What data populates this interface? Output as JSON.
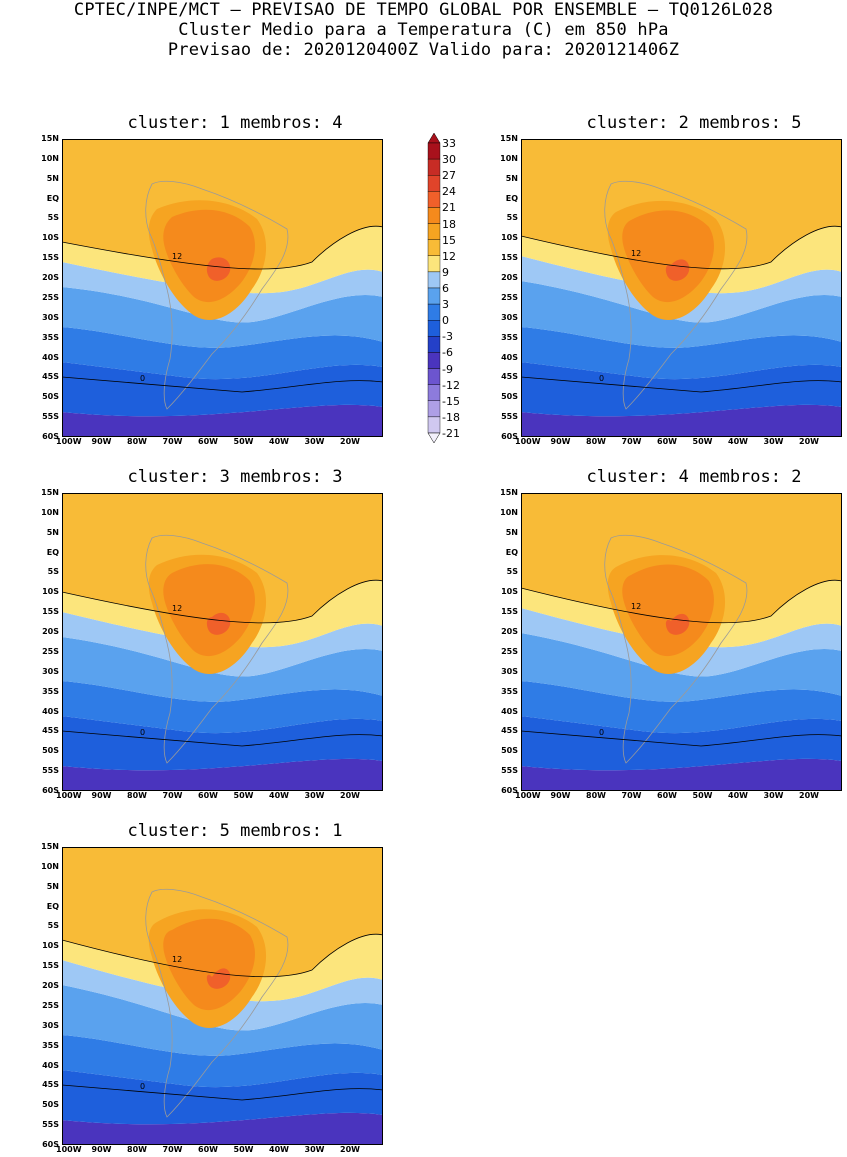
{
  "header": {
    "line1": "CPTEC/INPE/MCT – PREVISAO DE TEMPO GLOBAL POR ENSEMBLE – TQ0126L028",
    "line2": "Cluster Medio para a Temperatura (C) em 850 hPa",
    "line3": "Previsao de: 2020120400Z   Valido para: 2020121406Z"
  },
  "axes": {
    "lat_labels": [
      "15N",
      "10N",
      "5N",
      "EQ",
      "5S",
      "10S",
      "15S",
      "20S",
      "25S",
      "30S",
      "35S",
      "40S",
      "45S",
      "50S",
      "55S",
      "60S"
    ],
    "lon_labels": [
      "100W",
      "90W",
      "80W",
      "70W",
      "60W",
      "50W",
      "40W",
      "30W",
      "20W"
    ]
  },
  "colorbar": {
    "labels": [
      "33",
      "30",
      "27",
      "24",
      "21",
      "18",
      "15",
      "12",
      "9",
      "6",
      "3",
      "0",
      "-3",
      "-6",
      "-9",
      "-12",
      "-15",
      "-18",
      "-21"
    ],
    "colors": [
      "#a8111c",
      "#c72c25",
      "#e0442a",
      "#f0602a",
      "#f58a1c",
      "#f6a421",
      "#f8bb37",
      "#fce57c",
      "#9ec8f5",
      "#5aa2ee",
      "#2f7ce6",
      "#1e5fdc",
      "#2440c8",
      "#4a34be",
      "#6c55cf",
      "#8d7bdc",
      "#ae9fe6",
      "#d0c8f0"
    ]
  },
  "panels": [
    {
      "title": "cluster: 1   membros: 4",
      "contour_12": "12",
      "contour_0": "0"
    },
    {
      "title": "cluster: 2   membros: 5",
      "contour_12": "12",
      "contour_0": "0"
    },
    {
      "title": "cluster: 3   membros: 3",
      "contour_12": "12",
      "contour_0": "0"
    },
    {
      "title": "cluster: 4   membros: 2",
      "contour_12": "12",
      "contour_0": "0"
    },
    {
      "title": "cluster: 5   membros: 1",
      "contour_12": "12",
      "contour_0": "0"
    }
  ]
}
